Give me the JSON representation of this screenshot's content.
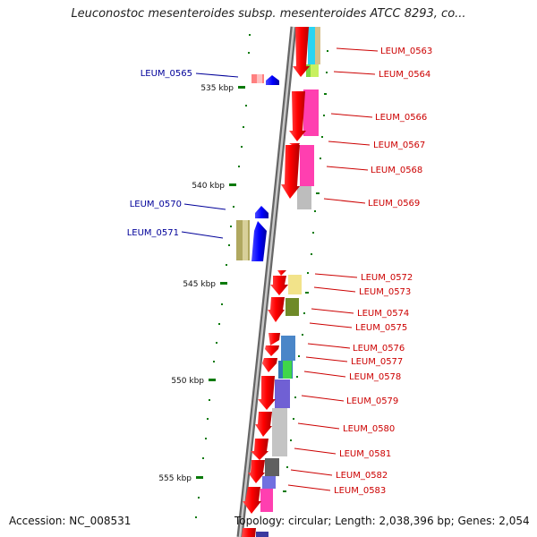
{
  "title": "Leuconostoc mesenteroides subsp. mesenteroides ATCC 8293, co...",
  "footer": {
    "accession": "Accession: NC_008531",
    "summary": "Topology: circular; Length: 2,038,396 bp; Genes: 2,054"
  },
  "colors": {
    "forward_gene": "#ff0000",
    "reverse_gene": "#0000ff",
    "forward_label": "#cc0000",
    "reverse_label": "#000099",
    "backbone": "#777777",
    "tick": "#0a7a0a"
  },
  "kbp_labels": [
    "535 kbp",
    "540 kbp",
    "545 kbp",
    "550 kbp",
    "555 kbp"
  ],
  "left_labels": [
    "LEUM_0565",
    "LEUM_0570",
    "LEUM_0571"
  ],
  "right_labels": [
    "LEUM_0563",
    "LEUM_0564",
    "LEUM_0566",
    "LEUM_0567",
    "LEUM_0568",
    "LEUM_0569",
    "LEUM_0572",
    "LEUM_0573",
    "LEUM_0574",
    "LEUM_0575",
    "LEUM_0576",
    "LEUM_0577",
    "LEUM_0578",
    "LEUM_0579",
    "LEUM_0580",
    "LEUM_0581",
    "LEUM_0582",
    "LEUM_0583"
  ]
}
